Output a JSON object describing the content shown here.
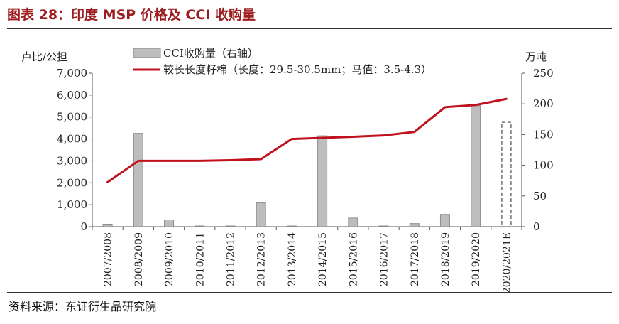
{
  "figure": {
    "title": "图表 28：印度 MSP 价格及 CCI 收购量",
    "source": "资料来源：东证衍生品研究院"
  },
  "colors": {
    "bar": "#bdbdbd",
    "bar_stroke": "#8c8c8c",
    "line": "#c0111e",
    "title": "#9c1c1f"
  },
  "chart_data": {
    "type": "bar",
    "categories": [
      "2007/2008",
      "2008/2009",
      "2009/2010",
      "2010/2011",
      "2011/2012",
      "2012/2013",
      "2013/2014",
      "2014/2015",
      "2015/2016",
      "2016/2017",
      "2017/2018",
      "2018/2019",
      "2019/2020",
      "2020/2021E"
    ],
    "left_axis": {
      "label": "卢比/公担",
      "ticks": [
        "0",
        "1,000",
        "2,000",
        "3,000",
        "4,000",
        "5,000",
        "6,000",
        "7,000"
      ],
      "ylim": [
        0,
        7000
      ]
    },
    "right_axis": {
      "label": "万吨",
      "ticks": [
        "0",
        "50",
        "100",
        "150",
        "200",
        "250"
      ],
      "ylim": [
        0,
        250
      ]
    },
    "legend_position": "top",
    "series": [
      {
        "name": "CCI收购量（右轴）",
        "kind": "bar",
        "axis": "right",
        "values": [
          4,
          152,
          11,
          0.5,
          0.5,
          39,
          0.5,
          148,
          14,
          1,
          5,
          20,
          197,
          170
        ],
        "estimated_last": true
      },
      {
        "name": "较长长度籽棉（长度：29.5-30.5mm；马值：3.5-4.3）",
        "kind": "line",
        "axis": "left",
        "values": [
          2030,
          3000,
          3000,
          3000,
          3030,
          3080,
          4000,
          4050,
          4100,
          4160,
          4320,
          5450,
          5550,
          5825
        ]
      }
    ]
  }
}
